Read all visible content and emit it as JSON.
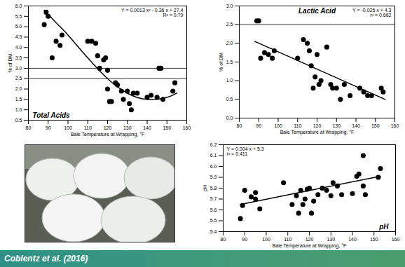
{
  "chart_data": [
    {
      "type": "scatter",
      "title": "Total Acids",
      "color": "#000000",
      "marker": "circle",
      "xlabel": "Bale Temperature at Wrapping, °F",
      "ylabel": "% of DM",
      "annotations": [
        "Y = 0.0013 x² - 0.36 x + 27.4",
        "R² = 0.79"
      ],
      "xlim": [
        80,
        160
      ],
      "xticks": [
        80,
        90,
        100,
        110,
        120,
        130,
        140,
        150,
        160
      ],
      "ylim": [
        0.5,
        6.0
      ],
      "yticks": [
        0.5,
        {
          "value": 1,
          "label": "1.0"
        },
        1.5,
        {
          "value": 2,
          "label": "2.0"
        },
        2.5,
        {
          "value": 3,
          "label": "3.0"
        },
        3.5,
        {
          "value": 4,
          "label": "4.0"
        },
        4.5,
        {
          "value": 5,
          "label": "5.0"
        },
        5.5,
        {
          "value": 6,
          "label": "6.0"
        }
      ],
      "reference_lines": [
        3.0,
        2.5
      ],
      "x": [
        88,
        89,
        90,
        92,
        94,
        96,
        97,
        110,
        112,
        114,
        115,
        116,
        118,
        119,
        120,
        120,
        121,
        122,
        124,
        125,
        127,
        128,
        130,
        131,
        132,
        133,
        135,
        140,
        142,
        145,
        146,
        147,
        148,
        153,
        154
      ],
      "values": [
        5.1,
        5.7,
        5.5,
        3.5,
        4.3,
        4.1,
        4.6,
        4.3,
        4.3,
        4.2,
        3.6,
        3.0,
        3.4,
        3.5,
        2.9,
        2.0,
        1.4,
        1.4,
        2.3,
        2.2,
        1.9,
        1.5,
        1.9,
        1.3,
        1.0,
        1.8,
        1.8,
        1.6,
        1.7,
        1.6,
        3.0,
        3.0,
        1.5,
        1.9,
        2.3
      ],
      "trend": {
        "x": [
          88,
          95,
          100,
          110,
          120,
          130,
          140,
          150,
          155
        ],
        "values": [
          5.8,
          5.1,
          4.6,
          3.5,
          2.5,
          1.8,
          1.5,
          1.6,
          1.8
        ]
      }
    },
    {
      "type": "scatter",
      "title": "Lactic Acid",
      "color": "#000000",
      "marker": "circle",
      "xlabel": "Bale Temperature at Wrapping, °F",
      "ylabel": "% of DM",
      "annotations": [
        "Y = -0.025 x + 4.3",
        "r² = 0.662"
      ],
      "xlim": [
        80,
        160
      ],
      "xticks": [
        80,
        90,
        100,
        110,
        120,
        130,
        140,
        150,
        160
      ],
      "ylim": [
        0,
        3.0
      ],
      "yticks": [
        {
          "value": 0,
          "label": "0.0"
        },
        0.5,
        {
          "value": 1,
          "label": "1.0"
        },
        1.5,
        {
          "value": 2,
          "label": "2.0"
        },
        2.5,
        {
          "value": 3,
          "label": "3.0"
        }
      ],
      "reference_lines": [
        2.5
      ],
      "x": [
        89,
        90,
        91,
        93,
        95,
        97,
        98,
        110,
        113,
        115,
        116,
        117,
        118,
        119,
        120,
        121,
        122,
        125,
        127,
        128,
        130,
        132,
        134,
        137,
        142,
        144,
        146,
        148,
        153,
        154
      ],
      "values": [
        2.6,
        2.6,
        1.6,
        1.75,
        1.7,
        1.6,
        1.8,
        1.6,
        2.1,
        2.0,
        1.8,
        1.4,
        0.8,
        1.1,
        1.7,
        0.9,
        1.0,
        1.9,
        0.9,
        0.8,
        0.8,
        0.5,
        0.9,
        0.6,
        0.8,
        0.7,
        0.6,
        0.6,
        0.8,
        0.7
      ],
      "trend": {
        "x": [
          88,
          155
        ],
        "values": [
          2.05,
          0.5
        ]
      }
    },
    {
      "type": "scatter",
      "title": "pH",
      "color": "#000000",
      "marker": "circle",
      "xlabel": "Bale Temperature at Wrapping, °F",
      "ylabel": "pH",
      "annotations": [
        "Y = 0.004 x + 5.3",
        "r² = 0.411"
      ],
      "xlim": [
        80,
        160
      ],
      "xticks": [
        80,
        90,
        100,
        110,
        120,
        130,
        140,
        150,
        160
      ],
      "ylim": [
        5.4,
        6.2
      ],
      "yticks": [
        5.4,
        5.5,
        5.6,
        5.7,
        5.8,
        5.9,
        {
          "value": 6,
          "label": "6.0"
        },
        6.1,
        6.2
      ],
      "reference_lines": [],
      "x": [
        88,
        89,
        90,
        93,
        95,
        95,
        97,
        108,
        112,
        114,
        115,
        116,
        117,
        118,
        119,
        120,
        121,
        122,
        124,
        126,
        128,
        130,
        131,
        133,
        135,
        140,
        142,
        143,
        145,
        145,
        146,
        152,
        153
      ],
      "values": [
        5.52,
        5.64,
        5.78,
        5.72,
        5.7,
        5.76,
        5.61,
        5.85,
        5.65,
        5.73,
        5.57,
        5.78,
        5.65,
        5.7,
        5.79,
        5.8,
        5.57,
        5.68,
        5.74,
        5.8,
        5.78,
        5.73,
        5.85,
        5.82,
        5.74,
        5.75,
        5.91,
        5.93,
        5.82,
        6.1,
        5.74,
        5.9,
        5.98
      ],
      "trend": {
        "x": [
          88,
          153
        ],
        "values": [
          5.65,
          5.91
        ]
      }
    }
  ],
  "caption": "Coblentz et al. (2016)"
}
